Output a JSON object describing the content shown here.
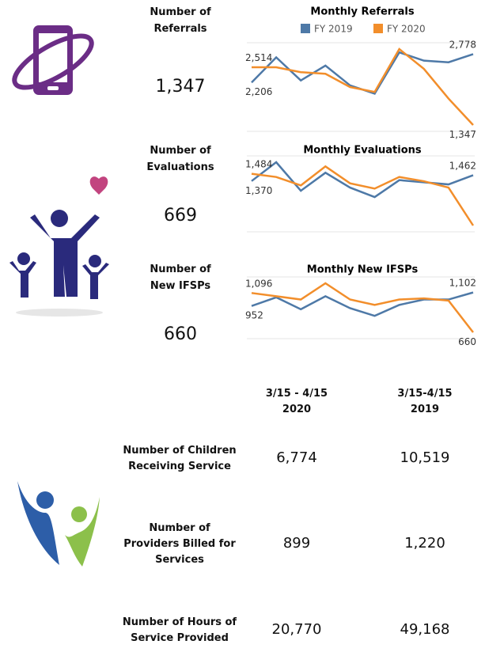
{
  "chart_data": [
    {
      "type": "line",
      "title": "Monthly Referrals",
      "legend": "top",
      "categories": [
        null,
        null,
        null,
        null,
        null,
        null,
        null,
        null,
        null,
        null
      ],
      "series": [
        {
          "name": "FY 2019",
          "color": "#4e79a7",
          "values": [
            2206,
            2714,
            2247,
            2547,
            2147,
            1981,
            2814,
            2647,
            2614,
            2778
          ],
          "value_labels": [
            "2,206",
            null,
            null,
            null,
            null,
            null,
            null,
            null,
            null,
            "2,778"
          ]
        },
        {
          "name": "FY 2020",
          "color": "#f28e2b",
          "values": [
            2514,
            2514,
            2414,
            2381,
            2114,
            2014,
            2881,
            2481,
            1881,
            1347
          ],
          "value_labels": [
            "2,514",
            null,
            null,
            null,
            null,
            null,
            null,
            null,
            null,
            "1,347"
          ]
        }
      ]
    },
    {
      "type": "line",
      "title": "Monthly Evaluations",
      "categories": [
        null,
        null,
        null,
        null,
        null,
        null,
        null,
        null,
        null,
        null
      ],
      "series": [
        {
          "name": "FY 2019",
          "color": "#4e79a7",
          "values": [
            1370,
            1667,
            1217,
            1501,
            1267,
            1117,
            1384,
            1351,
            1317,
            1462
          ],
          "value_labels": [
            "1,370",
            null,
            null,
            null,
            null,
            null,
            null,
            null,
            null,
            "1,462"
          ]
        },
        {
          "name": "FY 2020",
          "color": "#f28e2b",
          "values": [
            1484,
            1434,
            1301,
            1601,
            1334,
            1251,
            1434,
            1367,
            1267,
            669
          ],
          "value_labels": [
            "1,484",
            null,
            null,
            null,
            null,
            null,
            null,
            null,
            null,
            null
          ]
        }
      ]
    },
    {
      "type": "line",
      "title": "Monthly New IFSPs",
      "categories": [
        null,
        null,
        null,
        null,
        null,
        null,
        null,
        null,
        null,
        null
      ],
      "series": [
        {
          "name": "FY 2019",
          "color": "#4e79a7",
          "values": [
            952,
            1048,
            916,
            1060,
            928,
            843,
            964,
            1024,
            1024,
            1102
          ],
          "value_labels": [
            "952",
            null,
            null,
            null,
            null,
            null,
            null,
            null,
            null,
            "1,102"
          ]
        },
        {
          "name": "FY 2020",
          "color": "#f28e2b",
          "values": [
            1096,
            1060,
            1024,
            1204,
            1024,
            964,
            1024,
            1036,
            1012,
            660
          ],
          "value_labels": [
            "1,096",
            null,
            null,
            null,
            null,
            null,
            null,
            null,
            null,
            "660"
          ]
        }
      ]
    }
  ],
  "kpis": [
    {
      "label": [
        "Number of",
        "Referrals"
      ],
      "value": "1,347"
    },
    {
      "label": [
        "Number of",
        "Evaluations"
      ],
      "value": "669"
    },
    {
      "label": [
        "Number of",
        "New IFSPs"
      ],
      "value": "660"
    }
  ],
  "table": {
    "headers": [
      [
        "3/15 - 4/15",
        "2020"
      ],
      [
        "3/15-4/15",
        "2019"
      ]
    ],
    "rows": [
      {
        "label": [
          "Number of Children",
          "Receiving Service"
        ],
        "cells": [
          "6,774",
          "10,519"
        ]
      },
      {
        "label": [
          "Number of",
          "Providers Billed for",
          "Services"
        ],
        "cells": [
          "899",
          "1,220"
        ]
      },
      {
        "label": [
          "Number of  Hours of",
          "Service Provided"
        ],
        "cells": [
          "20,770",
          "49,168"
        ]
      }
    ]
  }
}
